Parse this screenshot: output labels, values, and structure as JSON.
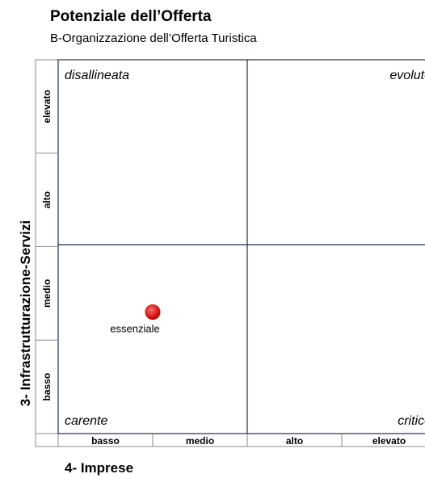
{
  "chart_data": {
    "type": "scatter",
    "title": "Potenziale dell’Offerta",
    "subtitle": "B-Organizzazione dell’Offerta Turistica",
    "x_label": "4- Imprese",
    "y_label": "3- Infrastrutturazione-Servizi",
    "x_categories": [
      "basso",
      "medio",
      "alto",
      "elevato"
    ],
    "y_categories": [
      "basso",
      "medio",
      "alto",
      "elevato"
    ],
    "quadrants": [
      "disallineata",
      "evoluto",
      "carente",
      "critico"
    ],
    "xlim": [
      0,
      4
    ],
    "ylim": [
      0,
      4
    ],
    "series": [
      {
        "name": "essenziale",
        "color": "#e00000",
        "x": [
          1.0
        ],
        "values": [
          1.3
        ]
      }
    ]
  }
}
